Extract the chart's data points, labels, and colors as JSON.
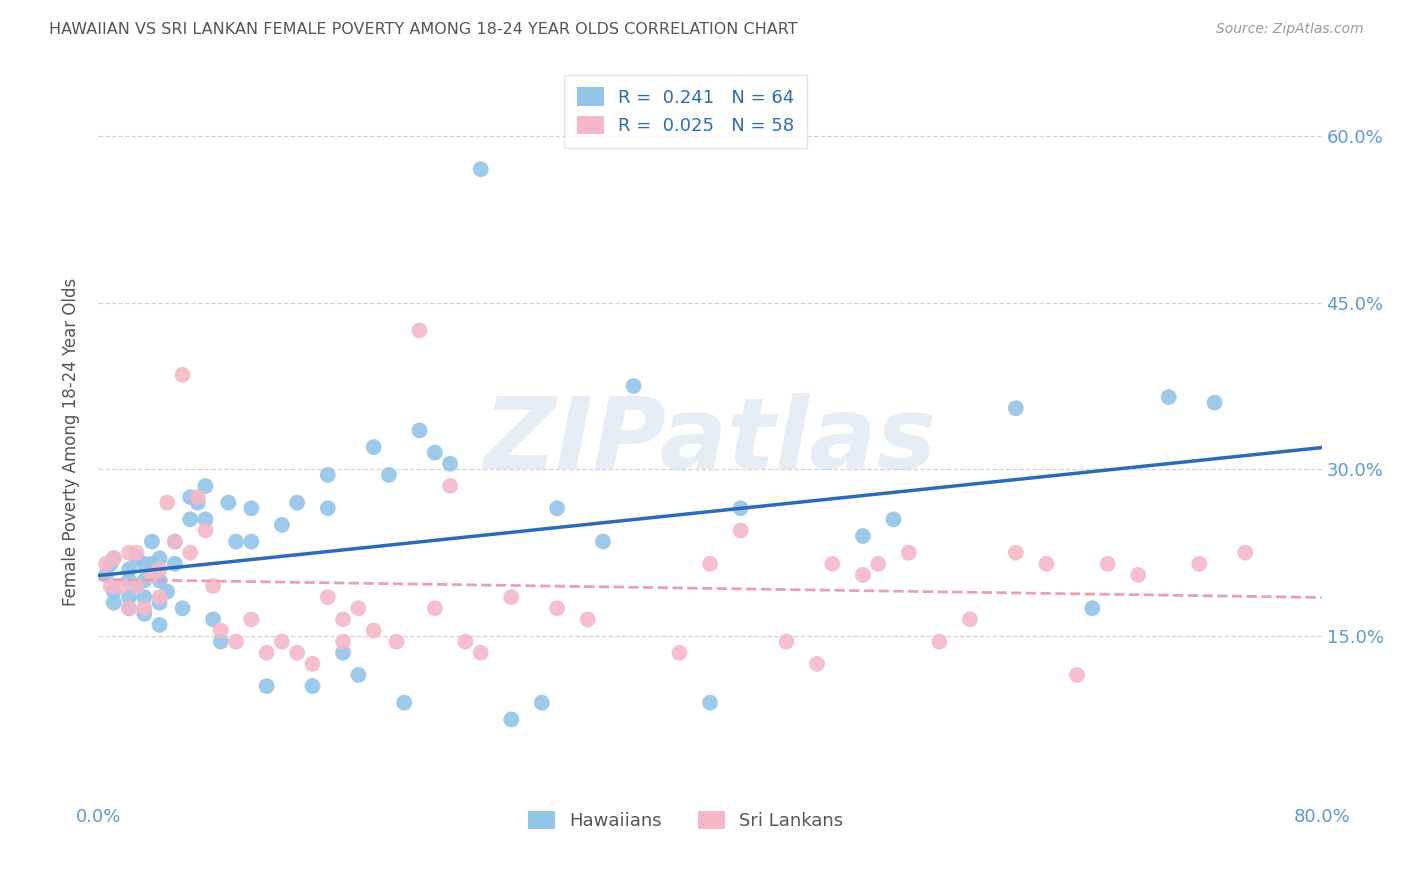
{
  "title": "HAWAIIAN VS SRI LANKAN FEMALE POVERTY AMONG 18-24 YEAR OLDS CORRELATION CHART",
  "source": "Source: ZipAtlas.com",
  "ylabel": "Female Poverty Among 18-24 Year Olds",
  "xlim": [
    0.0,
    0.8
  ],
  "ylim": [
    0.0,
    0.65
  ],
  "yticks": [
    0.15,
    0.3,
    0.45,
    0.6
  ],
  "ytick_labels": [
    "15.0%",
    "30.0%",
    "45.0%",
    "60.0%"
  ],
  "xtick_vals": [
    0.0,
    0.1,
    0.2,
    0.3,
    0.4,
    0.5,
    0.6,
    0.7,
    0.8
  ],
  "xtick_labels": [
    "0.0%",
    "",
    "",
    "",
    "",
    "",
    "",
    "",
    "80.0%"
  ],
  "hawaiian_color": "#92c5e8",
  "srilanka_color": "#f4b8c8",
  "hawaiian_line_color": "#2b6cb8",
  "srilanka_line_color": "#e8a0b4",
  "hawaiian_R": 0.241,
  "hawaiian_N": 64,
  "srilanka_R": 0.025,
  "srilanka_N": 58,
  "background_color": "#ffffff",
  "grid_color": "#c8c8c8",
  "watermark": "ZIPatlas",
  "title_color": "#555555",
  "axis_label_color": "#555555",
  "tick_color": "#5b9bd5",
  "legend_R_color": "#2b6cb8",
  "hawaiian_x": [
    0.005,
    0.008,
    0.01,
    0.01,
    0.01,
    0.02,
    0.02,
    0.02,
    0.02,
    0.025,
    0.025,
    0.03,
    0.03,
    0.03,
    0.03,
    0.035,
    0.035,
    0.04,
    0.04,
    0.04,
    0.04,
    0.045,
    0.05,
    0.05,
    0.055,
    0.06,
    0.06,
    0.065,
    0.07,
    0.07,
    0.075,
    0.08,
    0.085,
    0.09,
    0.1,
    0.1,
    0.11,
    0.12,
    0.13,
    0.14,
    0.15,
    0.15,
    0.16,
    0.17,
    0.18,
    0.19,
    0.2,
    0.21,
    0.22,
    0.23,
    0.25,
    0.27,
    0.29,
    0.3,
    0.33,
    0.35,
    0.4,
    0.42,
    0.5,
    0.52,
    0.6,
    0.65,
    0.7,
    0.73
  ],
  "hawaiian_y": [
    0.205,
    0.215,
    0.22,
    0.19,
    0.18,
    0.21,
    0.2,
    0.185,
    0.175,
    0.22,
    0.195,
    0.215,
    0.2,
    0.185,
    0.17,
    0.235,
    0.215,
    0.22,
    0.2,
    0.18,
    0.16,
    0.19,
    0.235,
    0.215,
    0.175,
    0.275,
    0.255,
    0.27,
    0.285,
    0.255,
    0.165,
    0.145,
    0.27,
    0.235,
    0.265,
    0.235,
    0.105,
    0.25,
    0.27,
    0.105,
    0.295,
    0.265,
    0.135,
    0.115,
    0.32,
    0.295,
    0.09,
    0.335,
    0.315,
    0.305,
    0.57,
    0.075,
    0.09,
    0.265,
    0.235,
    0.375,
    0.09,
    0.265,
    0.24,
    0.255,
    0.355,
    0.175,
    0.365,
    0.36
  ],
  "srilanka_x": [
    0.005,
    0.008,
    0.01,
    0.015,
    0.02,
    0.02,
    0.025,
    0.025,
    0.03,
    0.035,
    0.04,
    0.04,
    0.045,
    0.05,
    0.055,
    0.06,
    0.065,
    0.07,
    0.075,
    0.08,
    0.09,
    0.1,
    0.11,
    0.12,
    0.13,
    0.14,
    0.15,
    0.16,
    0.16,
    0.17,
    0.18,
    0.195,
    0.21,
    0.22,
    0.23,
    0.24,
    0.25,
    0.27,
    0.3,
    0.32,
    0.38,
    0.4,
    0.42,
    0.45,
    0.47,
    0.48,
    0.5,
    0.51,
    0.53,
    0.55,
    0.57,
    0.6,
    0.62,
    0.64,
    0.66,
    0.68,
    0.72,
    0.75
  ],
  "srilanka_y": [
    0.215,
    0.195,
    0.22,
    0.195,
    0.225,
    0.175,
    0.225,
    0.195,
    0.175,
    0.205,
    0.21,
    0.185,
    0.27,
    0.235,
    0.385,
    0.225,
    0.275,
    0.245,
    0.195,
    0.155,
    0.145,
    0.165,
    0.135,
    0.145,
    0.135,
    0.125,
    0.185,
    0.165,
    0.145,
    0.175,
    0.155,
    0.145,
    0.425,
    0.175,
    0.285,
    0.145,
    0.135,
    0.185,
    0.175,
    0.165,
    0.135,
    0.215,
    0.245,
    0.145,
    0.125,
    0.215,
    0.205,
    0.215,
    0.225,
    0.145,
    0.165,
    0.225,
    0.215,
    0.115,
    0.215,
    0.205,
    0.215,
    0.225
  ]
}
